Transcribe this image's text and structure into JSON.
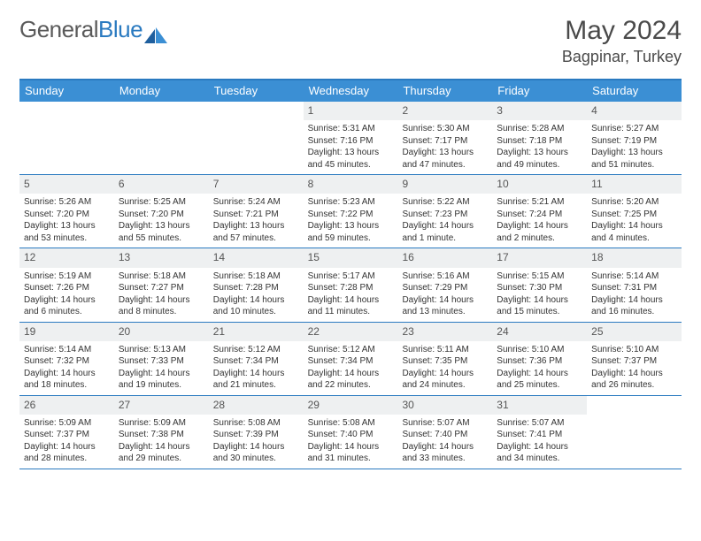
{
  "logo": {
    "text_a": "General",
    "text_b": "Blue"
  },
  "title": "May 2024",
  "location": "Bagpinar, Turkey",
  "accent_color": "#3b8fd4",
  "border_color": "#2a7ac0",
  "daynum_bg": "#eef0f1",
  "dow": [
    "Sunday",
    "Monday",
    "Tuesday",
    "Wednesday",
    "Thursday",
    "Friday",
    "Saturday"
  ],
  "weeks": [
    [
      null,
      null,
      null,
      {
        "d": "1",
        "sr": "5:31 AM",
        "ss": "7:16 PM",
        "dl": "13 hours and 45 minutes."
      },
      {
        "d": "2",
        "sr": "5:30 AM",
        "ss": "7:17 PM",
        "dl": "13 hours and 47 minutes."
      },
      {
        "d": "3",
        "sr": "5:28 AM",
        "ss": "7:18 PM",
        "dl": "13 hours and 49 minutes."
      },
      {
        "d": "4",
        "sr": "5:27 AM",
        "ss": "7:19 PM",
        "dl": "13 hours and 51 minutes."
      }
    ],
    [
      {
        "d": "5",
        "sr": "5:26 AM",
        "ss": "7:20 PM",
        "dl": "13 hours and 53 minutes."
      },
      {
        "d": "6",
        "sr": "5:25 AM",
        "ss": "7:20 PM",
        "dl": "13 hours and 55 minutes."
      },
      {
        "d": "7",
        "sr": "5:24 AM",
        "ss": "7:21 PM",
        "dl": "13 hours and 57 minutes."
      },
      {
        "d": "8",
        "sr": "5:23 AM",
        "ss": "7:22 PM",
        "dl": "13 hours and 59 minutes."
      },
      {
        "d": "9",
        "sr": "5:22 AM",
        "ss": "7:23 PM",
        "dl": "14 hours and 1 minute."
      },
      {
        "d": "10",
        "sr": "5:21 AM",
        "ss": "7:24 PM",
        "dl": "14 hours and 2 minutes."
      },
      {
        "d": "11",
        "sr": "5:20 AM",
        "ss": "7:25 PM",
        "dl": "14 hours and 4 minutes."
      }
    ],
    [
      {
        "d": "12",
        "sr": "5:19 AM",
        "ss": "7:26 PM",
        "dl": "14 hours and 6 minutes."
      },
      {
        "d": "13",
        "sr": "5:18 AM",
        "ss": "7:27 PM",
        "dl": "14 hours and 8 minutes."
      },
      {
        "d": "14",
        "sr": "5:18 AM",
        "ss": "7:28 PM",
        "dl": "14 hours and 10 minutes."
      },
      {
        "d": "15",
        "sr": "5:17 AM",
        "ss": "7:28 PM",
        "dl": "14 hours and 11 minutes."
      },
      {
        "d": "16",
        "sr": "5:16 AM",
        "ss": "7:29 PM",
        "dl": "14 hours and 13 minutes."
      },
      {
        "d": "17",
        "sr": "5:15 AM",
        "ss": "7:30 PM",
        "dl": "14 hours and 15 minutes."
      },
      {
        "d": "18",
        "sr": "5:14 AM",
        "ss": "7:31 PM",
        "dl": "14 hours and 16 minutes."
      }
    ],
    [
      {
        "d": "19",
        "sr": "5:14 AM",
        "ss": "7:32 PM",
        "dl": "14 hours and 18 minutes."
      },
      {
        "d": "20",
        "sr": "5:13 AM",
        "ss": "7:33 PM",
        "dl": "14 hours and 19 minutes."
      },
      {
        "d": "21",
        "sr": "5:12 AM",
        "ss": "7:34 PM",
        "dl": "14 hours and 21 minutes."
      },
      {
        "d": "22",
        "sr": "5:12 AM",
        "ss": "7:34 PM",
        "dl": "14 hours and 22 minutes."
      },
      {
        "d": "23",
        "sr": "5:11 AM",
        "ss": "7:35 PM",
        "dl": "14 hours and 24 minutes."
      },
      {
        "d": "24",
        "sr": "5:10 AM",
        "ss": "7:36 PM",
        "dl": "14 hours and 25 minutes."
      },
      {
        "d": "25",
        "sr": "5:10 AM",
        "ss": "7:37 PM",
        "dl": "14 hours and 26 minutes."
      }
    ],
    [
      {
        "d": "26",
        "sr": "5:09 AM",
        "ss": "7:37 PM",
        "dl": "14 hours and 28 minutes."
      },
      {
        "d": "27",
        "sr": "5:09 AM",
        "ss": "7:38 PM",
        "dl": "14 hours and 29 minutes."
      },
      {
        "d": "28",
        "sr": "5:08 AM",
        "ss": "7:39 PM",
        "dl": "14 hours and 30 minutes."
      },
      {
        "d": "29",
        "sr": "5:08 AM",
        "ss": "7:40 PM",
        "dl": "14 hours and 31 minutes."
      },
      {
        "d": "30",
        "sr": "5:07 AM",
        "ss": "7:40 PM",
        "dl": "14 hours and 33 minutes."
      },
      {
        "d": "31",
        "sr": "5:07 AM",
        "ss": "7:41 PM",
        "dl": "14 hours and 34 minutes."
      },
      null
    ]
  ]
}
